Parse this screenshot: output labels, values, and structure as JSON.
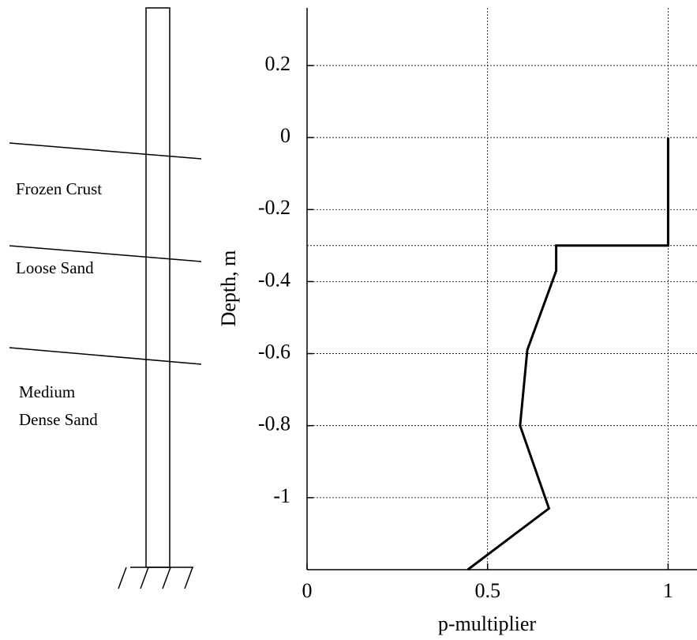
{
  "chart_data": {
    "type": "line",
    "xlabel": "p-multiplier",
    "ylabel": "Depth, m",
    "x": [
      1,
      1,
      0.69,
      0.69,
      0.61,
      0.59,
      0.67,
      0.445
    ],
    "series": [
      {
        "color": "#000000",
        "values": [
          0,
          -0.3,
          -0.3,
          -0.37,
          -0.59,
          -0.8,
          -1.03,
          -1.2
        ]
      }
    ],
    "xlim": [
      0,
      1.08
    ],
    "ylim": [
      -1.2,
      0.36
    ],
    "xticks": [
      0,
      0.5,
      1
    ],
    "yticks": [
      0.2,
      0,
      -0.2,
      -0.4,
      -0.6,
      -0.8,
      -1
    ],
    "grid": true,
    "hlines": [
      -0.3
    ]
  },
  "diagram": {
    "layer_labels": [
      [
        "Frozen Crust"
      ],
      [
        "Loose Sand"
      ],
      [
        "Medium",
        "Dense Sand"
      ]
    ]
  }
}
